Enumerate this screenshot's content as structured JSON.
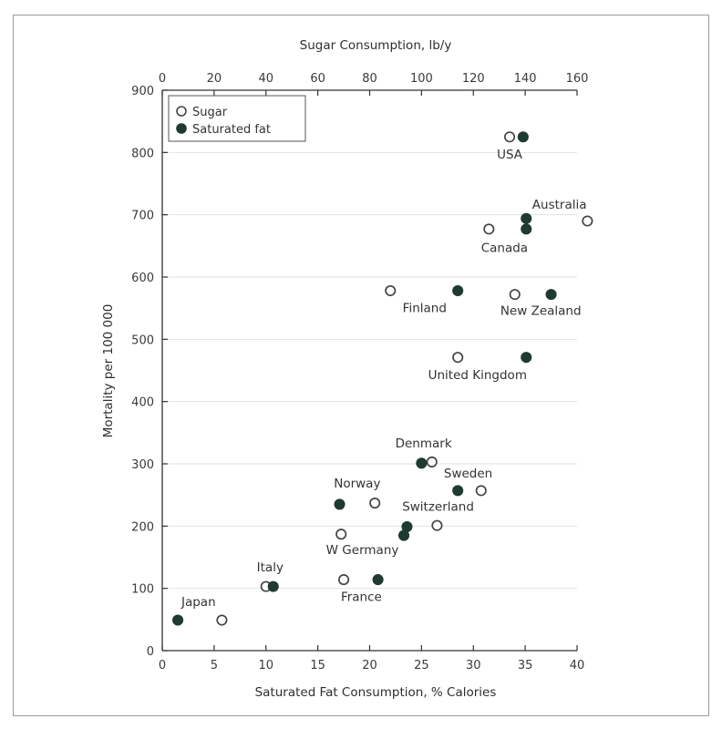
{
  "chart_data": {
    "type": "scatter",
    "xlabel": "Saturated Fat Consumption, % Calories",
    "x2label": "Sugar Consumption, lb/y",
    "ylabel": "Mortality per 100 000",
    "xlim": [
      0,
      40
    ],
    "x2lim": [
      0,
      160
    ],
    "ylim": [
      0,
      900
    ],
    "xticks": [
      0,
      5,
      10,
      15,
      20,
      25,
      30,
      35,
      40
    ],
    "x2ticks": [
      0,
      20,
      40,
      60,
      80,
      100,
      120,
      140,
      160
    ],
    "yticks": [
      0,
      100,
      200,
      300,
      400,
      500,
      600,
      700,
      800,
      900
    ],
    "grid": "horizontal",
    "legend_position": "top-left",
    "series": [
      {
        "name": "Sugar",
        "marker": "open-circle",
        "axis": "top",
        "points": [
          {
            "country": "USA",
            "x": 134,
            "y": 825
          },
          {
            "country": "Australia",
            "x": 164,
            "y": 690
          },
          {
            "country": "Canada",
            "x": 126,
            "y": 677
          },
          {
            "country": "Finland",
            "x": 88,
            "y": 578
          },
          {
            "country": "New Zealand",
            "x": 136,
            "y": 572
          },
          {
            "country": "United Kingdom",
            "x": 114,
            "y": 471
          },
          {
            "country": "Denmark",
            "x": 104,
            "y": 303
          },
          {
            "country": "Sweden",
            "x": 123,
            "y": 257
          },
          {
            "country": "Norway",
            "x": 82,
            "y": 237
          },
          {
            "country": "Switzerland",
            "x": 106,
            "y": 201
          },
          {
            "country": "W Germany",
            "x": 69,
            "y": 187
          },
          {
            "country": "Italy",
            "x": 40,
            "y": 103
          },
          {
            "country": "France",
            "x": 70,
            "y": 114
          },
          {
            "country": "Japan",
            "x": 23,
            "y": 49
          }
        ]
      },
      {
        "name": "Saturated fat",
        "marker": "filled-circle",
        "axis": "bottom",
        "points": [
          {
            "country": "USA",
            "x": 34.8,
            "y": 825
          },
          {
            "country": "Australia",
            "x": 35.1,
            "y": 694
          },
          {
            "country": "Canada",
            "x": 35.1,
            "y": 677
          },
          {
            "country": "Finland",
            "x": 28.5,
            "y": 578
          },
          {
            "country": "New Zealand",
            "x": 37.5,
            "y": 572
          },
          {
            "country": "United Kingdom",
            "x": 35.1,
            "y": 471
          },
          {
            "country": "Denmark",
            "x": 25.0,
            "y": 301
          },
          {
            "country": "Sweden",
            "x": 28.5,
            "y": 257
          },
          {
            "country": "Norway",
            "x": 17.1,
            "y": 235
          },
          {
            "country": "Switzerland",
            "x": 23.6,
            "y": 199
          },
          {
            "country": "W Germany",
            "x": 23.3,
            "y": 185
          },
          {
            "country": "Italy",
            "x": 10.7,
            "y": 103
          },
          {
            "country": "France",
            "x": 20.8,
            "y": 114
          },
          {
            "country": "Japan",
            "x": 1.5,
            "y": 49
          }
        ]
      }
    ],
    "annotations": [
      {
        "text": "USA",
        "x": 33.5,
        "y": 790
      },
      {
        "text": "Australia",
        "x": 38.3,
        "y": 710
      },
      {
        "text": "Canada",
        "x": 33.0,
        "y": 640
      },
      {
        "text": "Finland",
        "x": 25.3,
        "y": 544
      },
      {
        "text": "New Zealand",
        "x": 36.5,
        "y": 539
      },
      {
        "text": "United Kingdom",
        "x": 30.4,
        "y": 436
      },
      {
        "text": "Denmark",
        "x": 25.2,
        "y": 326
      },
      {
        "text": "Sweden",
        "x": 29.5,
        "y": 278
      },
      {
        "text": "Norway",
        "x": 18.8,
        "y": 262
      },
      {
        "text": "Switzerland",
        "x": 26.6,
        "y": 225
      },
      {
        "text": "W Germany",
        "x": 19.3,
        "y": 155
      },
      {
        "text": "Italy",
        "x": 10.4,
        "y": 127
      },
      {
        "text": "France",
        "x": 19.2,
        "y": 80
      },
      {
        "text": "Japan",
        "x": 3.5,
        "y": 72
      }
    ]
  }
}
